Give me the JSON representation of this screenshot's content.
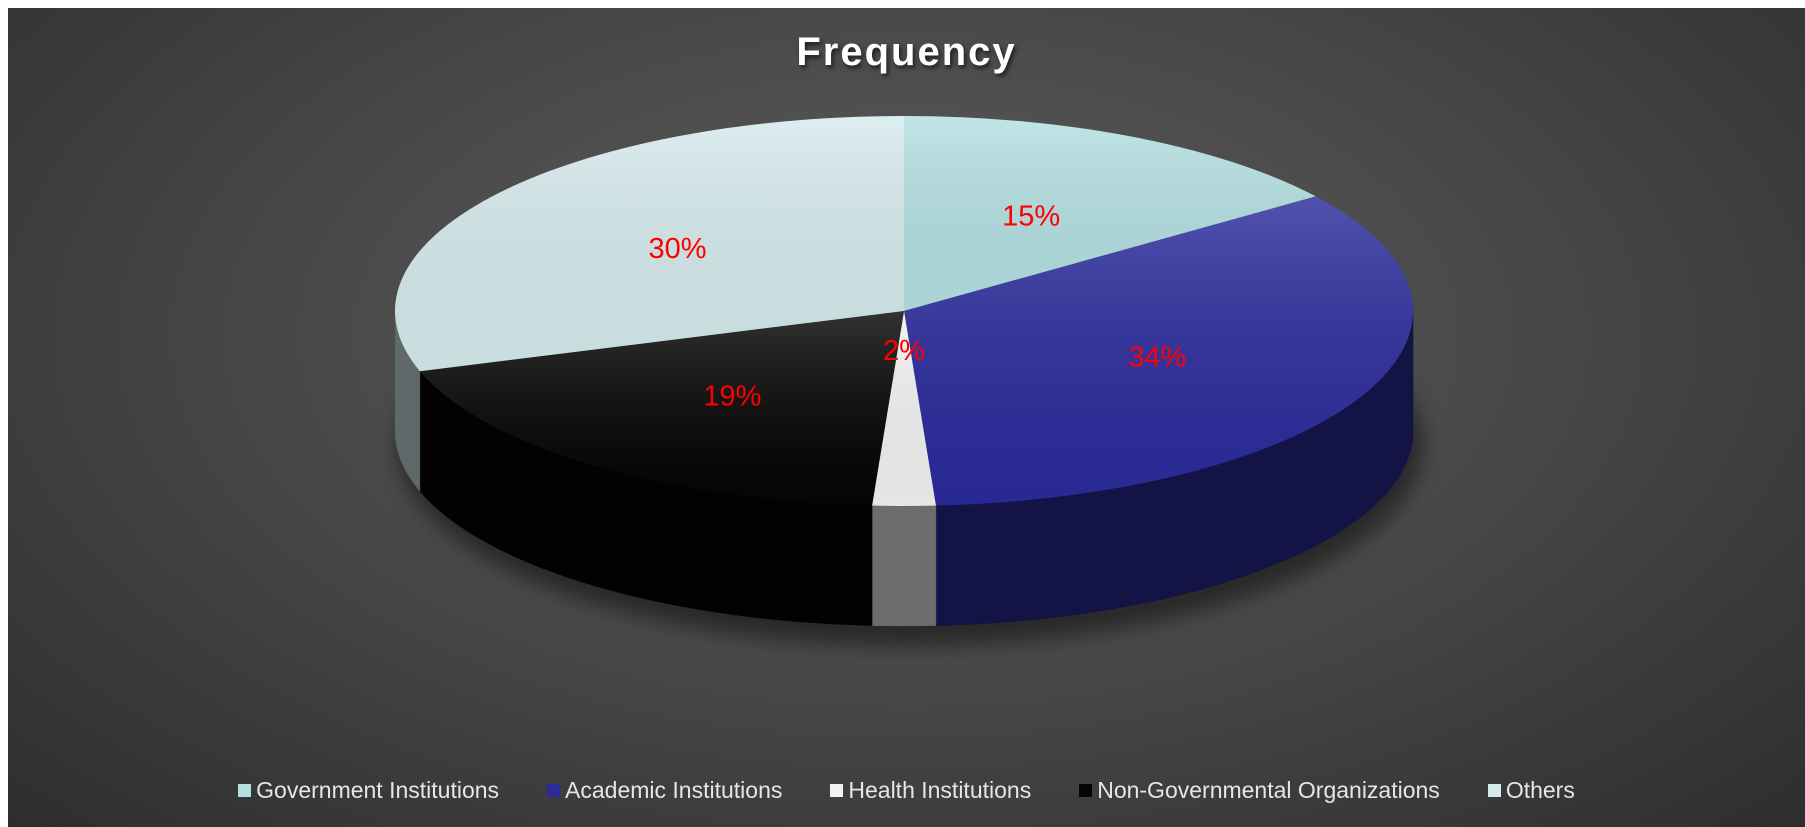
{
  "chart_data": {
    "type": "pie",
    "title": "Frequency",
    "style": "3d",
    "legend_position": "bottom",
    "slices": [
      {
        "name": "Government Institutions",
        "value": 15,
        "label": "15%",
        "color": "#b4e0e2"
      },
      {
        "name": "Academic Institutions",
        "value": 34,
        "label": "34%",
        "color": "#2b2b9c"
      },
      {
        "name": "Health Institutions",
        "value": 2,
        "label": "2%",
        "color": "#f2f2f2"
      },
      {
        "name": "Non-Governmental Organizations",
        "value": 19,
        "label": "19%",
        "color": "#050505"
      },
      {
        "name": "Others",
        "value": 30,
        "label": "30%",
        "color": "#d5eaec"
      }
    ],
    "label_color": "#ff0000"
  }
}
